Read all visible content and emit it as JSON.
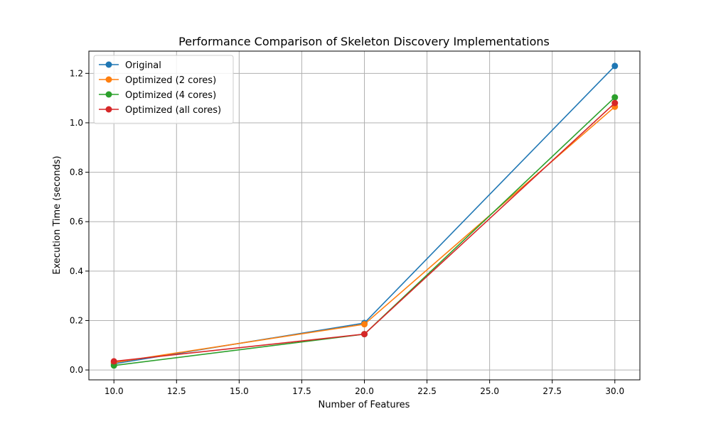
{
  "chart_data": {
    "type": "line",
    "title": "Performance Comparison of Skeleton Discovery Implementations",
    "xlabel": "Number of Features",
    "ylabel": "Execution Time (seconds)",
    "x": [
      10,
      20,
      30
    ],
    "xlim": [
      9.0,
      31.0
    ],
    "ylim": [
      -0.04,
      1.29
    ],
    "xticks": [
      10.0,
      12.5,
      15.0,
      17.5,
      20.0,
      22.5,
      25.0,
      27.5,
      30.0
    ],
    "xtick_labels": [
      "10.0",
      "12.5",
      "15.0",
      "17.5",
      "20.0",
      "22.5",
      "25.0",
      "27.5",
      "30.0"
    ],
    "yticks": [
      0.0,
      0.2,
      0.4,
      0.6,
      0.8,
      1.0,
      1.2
    ],
    "ytick_labels": [
      "0.0",
      "0.2",
      "0.4",
      "0.6",
      "0.8",
      "1.0",
      "1.2"
    ],
    "grid": true,
    "legend_position": "top-left",
    "series": [
      {
        "name": "Original",
        "color": "#1f77b4",
        "values": [
          0.025,
          0.19,
          1.23
        ]
      },
      {
        "name": "Optimized (2 cores)",
        "color": "#ff7f0e",
        "values": [
          0.03,
          0.185,
          1.065
        ]
      },
      {
        "name": "Optimized (4 cores)",
        "color": "#2ca02c",
        "values": [
          0.018,
          0.145,
          1.103
        ]
      },
      {
        "name": "Optimized (all cores)",
        "color": "#d62728",
        "values": [
          0.035,
          0.145,
          1.08
        ]
      }
    ]
  }
}
